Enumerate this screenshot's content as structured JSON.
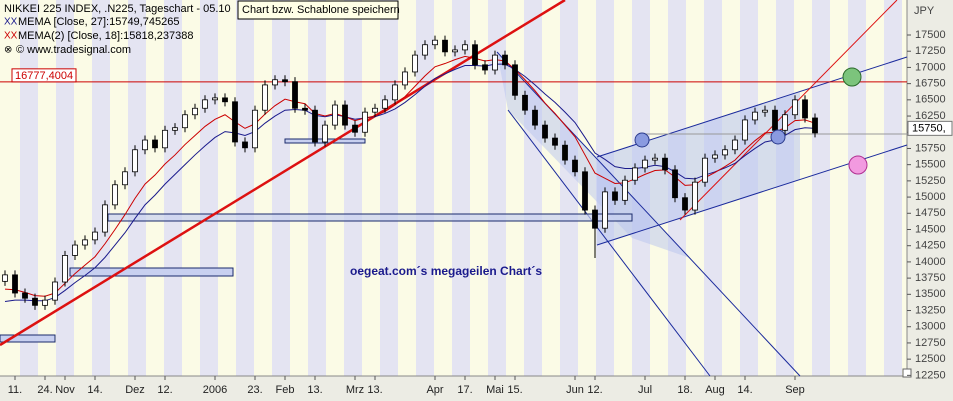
{
  "chart_data": {
    "type": "candlestick",
    "title": "NIKKEI 225 INDEX, .N225, Tageschart - 05.10",
    "source": "© www.tradesignal.com",
    "unit": "JPY",
    "tooltip": "Chart bzw. Schablone speichern",
    "annotation": "oegeat.com´s megageilen Chart´s",
    "price_tag": "15750,",
    "hline": {
      "value": 16777.4004,
      "label": "16777,4004",
      "color": "#cc0000"
    },
    "ylim": [
      12240,
      18040
    ],
    "yticks": [
      12250,
      12500,
      12750,
      13000,
      13250,
      13500,
      13750,
      14000,
      14250,
      14500,
      14750,
      15000,
      15250,
      15500,
      15750,
      16000,
      16250,
      16500,
      16750,
      17000,
      17250,
      17500
    ],
    "categories": [
      null,
      "11.",
      null,
      null,
      "24.",
      null,
      "Nov",
      null,
      null,
      "14.",
      null,
      null,
      null,
      "Dez",
      null,
      null,
      "12.",
      null,
      null,
      null,
      null,
      "2006",
      null,
      null,
      null,
      "23.",
      null,
      null,
      "Feb",
      null,
      null,
      "13.",
      null,
      null,
      null,
      "Mrz",
      null,
      "13.",
      null,
      null,
      null,
      null,
      null,
      "Apr",
      null,
      null,
      "17.",
      null,
      null,
      "Mai",
      null,
      "15.",
      null,
      null,
      null,
      null,
      null,
      "Jun",
      null,
      "12.",
      null,
      null,
      null,
      null,
      "Jul",
      null,
      null,
      null,
      "18.",
      null,
      null,
      "Aug",
      null,
      null,
      "14.",
      null,
      null,
      null,
      null,
      "Sep",
      null,
      null
    ],
    "open": [
      13700,
      13800,
      13520,
      13440,
      13330,
      13410,
      13690,
      14100,
      14260,
      14340,
      14460,
      14880,
      15190,
      15390,
      15730,
      15880,
      15760,
      16030,
      16070,
      16270,
      16370,
      16500,
      16530,
      16470,
      15850,
      15760,
      16340,
      16730,
      16810,
      16780,
      16370,
      16340,
      15850,
      16110,
      16420,
      16110,
      16000,
      16310,
      16370,
      16500,
      16730,
      16930,
      17190,
      17350,
      17420,
      17240,
      17270,
      17350,
      17040,
      16960,
      17190,
      17040,
      16570,
      16340,
      16110,
      15910,
      15800,
      15570,
      15390,
      14800,
      14520,
      15080,
      14950,
      15260,
      15450,
      15570,
      15600,
      15420,
      14990,
      14800,
      15230,
      15600,
      15650,
      15730,
      15880,
      16190,
      16310,
      16340,
      16030,
      16270,
      16500,
      16220
    ],
    "high": [
      13870,
      13870,
      13590,
      13510,
      13480,
      13760,
      14170,
      14330,
      14410,
      14530,
      14950,
      15260,
      15460,
      15800,
      15950,
      15950,
      16100,
      16140,
      16340,
      16440,
      16570,
      16600,
      16600,
      16540,
      15920,
      16410,
      16800,
      16880,
      16880,
      16850,
      16440,
      16410,
      16180,
      16490,
      16490,
      16180,
      16380,
      16440,
      16570,
      16800,
      17000,
      17260,
      17420,
      17490,
      17490,
      17340,
      17420,
      17420,
      17110,
      17260,
      17260,
      17110,
      16640,
      16410,
      16180,
      15980,
      15870,
      15640,
      15460,
      14870,
      15150,
      15150,
      15330,
      15520,
      15640,
      15670,
      15670,
      15490,
      15060,
      15300,
      15670,
      15720,
      15800,
      15950,
      16260,
      16380,
      16410,
      16410,
      16340,
      16570,
      16570,
      16290
    ],
    "low": [
      13630,
      13450,
      13370,
      13260,
      13260,
      13340,
      13620,
      14030,
      14190,
      14270,
      14390,
      14810,
      15120,
      15320,
      15660,
      15690,
      15690,
      15960,
      16000,
      16200,
      16300,
      16430,
      16400,
      15780,
      15690,
      15690,
      16270,
      16660,
      16710,
      16300,
      16270,
      15780,
      15780,
      16040,
      16040,
      15930,
      15930,
      16240,
      16300,
      16430,
      16660,
      16860,
      17120,
      17280,
      17170,
      17170,
      17200,
      16970,
      16890,
      16890,
      16970,
      16500,
      16270,
      16040,
      15840,
      15730,
      15500,
      15320,
      14730,
      14060,
      14450,
      14880,
      14880,
      15190,
      15380,
      15500,
      15350,
      14920,
      14730,
      14730,
      15160,
      15530,
      15580,
      15660,
      15810,
      16120,
      16240,
      15960,
      15960,
      16200,
      16150,
      15920
    ],
    "close": [
      13800,
      13520,
      13440,
      13330,
      13410,
      13690,
      14100,
      14260,
      14340,
      14460,
      14880,
      15190,
      15390,
      15730,
      15880,
      15760,
      16030,
      16070,
      16270,
      16370,
      16500,
      16530,
      16470,
      15850,
      15760,
      16340,
      16730,
      16810,
      16780,
      16370,
      16340,
      15850,
      16110,
      16420,
      16110,
      16000,
      16310,
      16370,
      16500,
      16730,
      16930,
      17190,
      17350,
      17420,
      17240,
      17270,
      17350,
      17040,
      16960,
      17190,
      17040,
      16570,
      16340,
      16110,
      15910,
      15800,
      15570,
      15390,
      14800,
      14520,
      15080,
      14950,
      15260,
      15450,
      15570,
      15600,
      15420,
      14990,
      14800,
      15230,
      15600,
      15650,
      15730,
      15880,
      16190,
      16310,
      16340,
      16030,
      16270,
      16500,
      16220,
      15990
    ],
    "series": [
      {
        "name": "MEMA [Close, 27]:15749,745265",
        "color": "#1a1a8c",
        "values": [
          13390,
          13410,
          13410,
          13400,
          13400,
          13450,
          13560,
          13680,
          13790,
          13910,
          14070,
          14260,
          14450,
          14670,
          14880,
          15030,
          15200,
          15350,
          15500,
          15650,
          15790,
          15920,
          16010,
          15990,
          15950,
          16010,
          16140,
          16250,
          16340,
          16350,
          16340,
          16260,
          16240,
          16270,
          16240,
          16200,
          16220,
          16240,
          16290,
          16360,
          16460,
          16580,
          16710,
          16830,
          16900,
          16970,
          17030,
          17030,
          17020,
          17050,
          17050,
          16970,
          16860,
          16730,
          16590,
          16460,
          16310,
          16150,
          15920,
          15680,
          15580,
          15470,
          15440,
          15440,
          15460,
          15490,
          15470,
          15390,
          15290,
          15280,
          15340,
          15390,
          15450,
          15520,
          15640,
          15750,
          15850,
          15880,
          15950,
          16040,
          16070,
          16060
        ]
      },
      {
        "name": "MEMA(2) [Close, 18]:15818,237388",
        "color": "#cc0000",
        "values": [
          13580,
          13570,
          13530,
          13480,
          13470,
          13520,
          13670,
          13820,
          13950,
          14080,
          14280,
          14500,
          14730,
          14980,
          15200,
          15340,
          15510,
          15650,
          15810,
          15950,
          16090,
          16200,
          16270,
          16160,
          16060,
          16130,
          16280,
          16410,
          16510,
          16470,
          16440,
          16290,
          16250,
          16290,
          16240,
          16180,
          16220,
          16250,
          16320,
          16420,
          16550,
          16710,
          16870,
          17010,
          17060,
          17120,
          17170,
          17140,
          17100,
          17120,
          17100,
          16970,
          16810,
          16640,
          16450,
          16290,
          16110,
          15930,
          15650,
          15370,
          15290,
          15210,
          15220,
          15280,
          15350,
          15410,
          15420,
          15310,
          15180,
          15190,
          15300,
          15380,
          15470,
          15570,
          15730,
          15870,
          15990,
          16000,
          16070,
          16180,
          16190,
          16140
        ]
      }
    ]
  }
}
